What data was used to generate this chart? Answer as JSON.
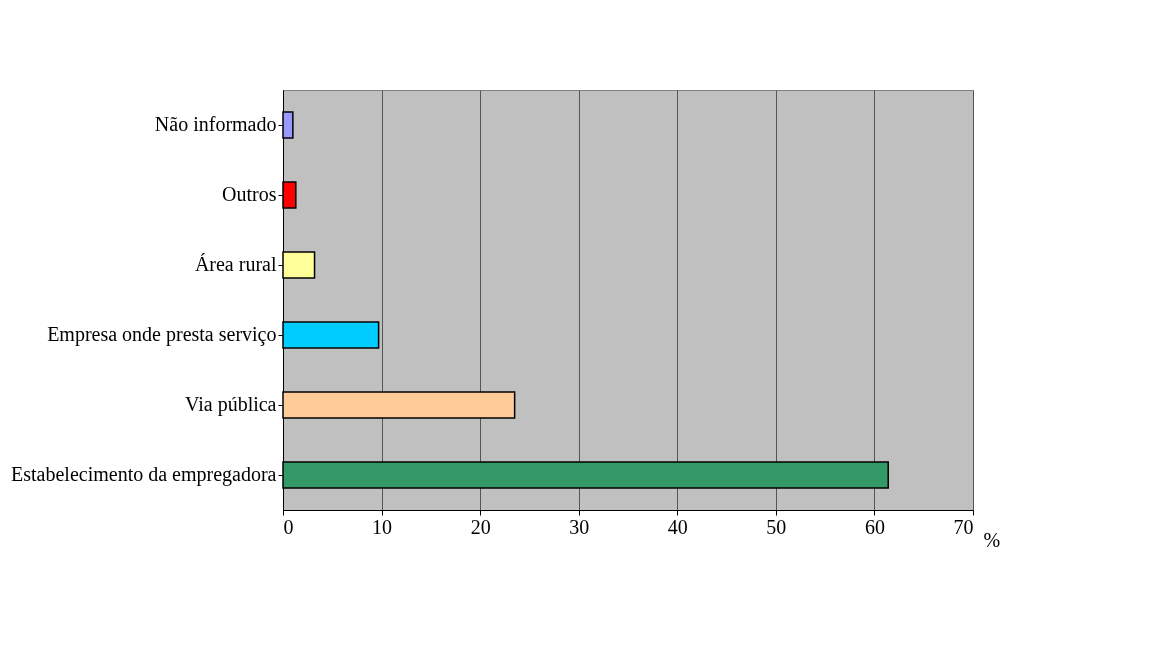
{
  "chart_data": {
    "type": "bar",
    "orientation": "horizontal",
    "xlabel": "%",
    "categories": [
      "Não informado",
      "Outros",
      "Área rural",
      "Empresa onde presta serviço",
      "Via pública",
      "Estabelecimento da empregadora"
    ],
    "values": [
      1.0,
      1.3,
      3.2,
      9.7,
      23.5,
      61.4
    ],
    "colors": [
      "#9999ff",
      "#ff0000",
      "#ffff99",
      "#00ccff",
      "#ffcc99",
      "#339966"
    ],
    "xlim": [
      0,
      70
    ],
    "xticks": [
      0,
      10,
      20,
      30,
      40,
      50,
      60,
      70
    ],
    "grid": "x"
  }
}
